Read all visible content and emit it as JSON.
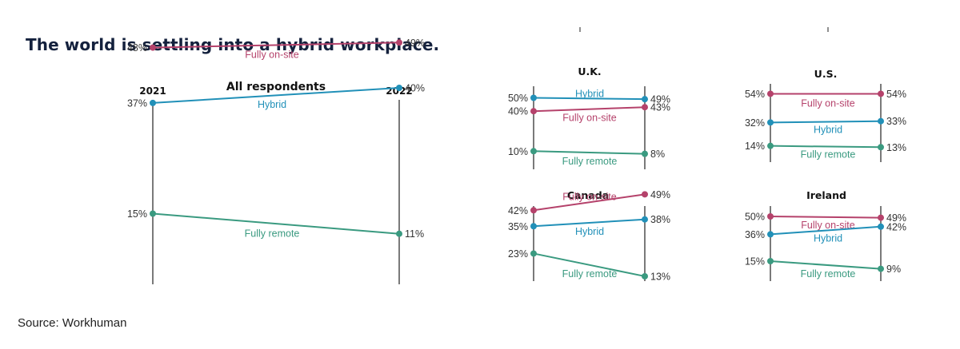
{
  "title": "The world is settling into a hybrid workplace.",
  "source": "Source: Workhuman",
  "colors": {
    "Fully on-site": "#b5426b",
    "Hybrid": "#2190b8",
    "Fully remote": "#3a9a80",
    "axis": "#222222"
  },
  "chart_data": [
    {
      "type": "line",
      "title": "All respondents",
      "x": [
        "2021",
        "2022"
      ],
      "series": [
        {
          "name": "Fully on-site",
          "values": [
            48,
            49
          ]
        },
        {
          "name": "Hybrid",
          "values": [
            37,
            40
          ]
        },
        {
          "name": "Fully remote",
          "values": [
            15,
            11
          ]
        }
      ]
    },
    {
      "type": "line",
      "title": "U.K.",
      "x": [
        "",
        ""
      ],
      "series": [
        {
          "name": "Hybrid",
          "values": [
            50,
            49
          ]
        },
        {
          "name": "Fully on-site",
          "values": [
            40,
            43
          ]
        },
        {
          "name": "Fully remote",
          "values": [
            10,
            8
          ]
        }
      ]
    },
    {
      "type": "line",
      "title": "U.S.",
      "x": [
        "",
        ""
      ],
      "series": [
        {
          "name": "Fully on-site",
          "values": [
            54,
            54
          ]
        },
        {
          "name": "Hybrid",
          "values": [
            32,
            33
          ]
        },
        {
          "name": "Fully remote",
          "values": [
            14,
            13
          ]
        }
      ]
    },
    {
      "type": "line",
      "title": "Canada",
      "x": [
        "",
        ""
      ],
      "series": [
        {
          "name": "Fully on-site",
          "values": [
            42,
            49
          ]
        },
        {
          "name": "Hybrid",
          "values": [
            35,
            38
          ]
        },
        {
          "name": "Fully remote",
          "values": [
            23,
            13
          ]
        }
      ]
    },
    {
      "type": "line",
      "title": "Ireland",
      "x": [
        "",
        ""
      ],
      "series": [
        {
          "name": "Fully on-site",
          "values": [
            50,
            49
          ]
        },
        {
          "name": "Hybrid",
          "values": [
            36,
            42
          ]
        },
        {
          "name": "Fully remote",
          "values": [
            15,
            9
          ]
        }
      ]
    }
  ]
}
